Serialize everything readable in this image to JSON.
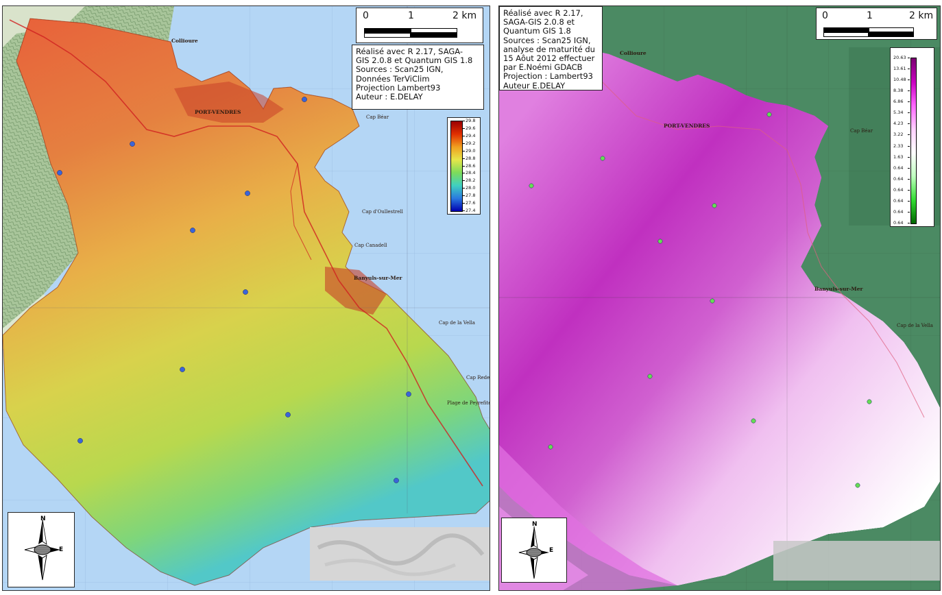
{
  "left_map": {
    "info_lines": [
      "Réalisé avec R 2.17, SAGA-",
      "GIS 2.0.8 et Quantum GIS 1.8",
      "Sources : Scan25 IGN,",
      "Données TerViClim",
      "Projection Lambert93",
      "Auteur : E.DELAY"
    ],
    "scale_labels": [
      "0",
      "1",
      "2 km"
    ],
    "legend_ticks": [
      "29.8",
      "29.6",
      "29.4",
      "29.2",
      "29.0",
      "28.8",
      "28.6",
      "28.4",
      "28.2",
      "28.0",
      "27.8",
      "27.6",
      "27.4"
    ],
    "legend_colors": [
      "#9b0000",
      "#e03000",
      "#f0a020",
      "#e6e64a",
      "#7ddc5a",
      "#40d0c0",
      "#2a7ae0",
      "#0000b0"
    ],
    "point_color": "#3b64d8",
    "compass": {
      "n": "N",
      "e": "E"
    },
    "places": {
      "collioure": "Collioure",
      "port_vendres": "PORT-VENDRES",
      "banyuls": "Banyuls-sur-Mer",
      "cap_bear": "Cap Béar",
      "cap_oullestrell": "Cap d'Oullestrell",
      "cap_canadell": "Cap Canadell",
      "cap_peyrefite": "Cap Rederis",
      "plage_peyrefite": "Plage de Peyrefite",
      "cap_vella": "Cap de la Vella"
    }
  },
  "right_map": {
    "info_lines": [
      "Réalisé avec R 2.17,",
      "SAGA-GIS 2.0.8 et",
      "Quantum GIS 1.8",
      "Sources : Scan25 IGN,",
      "analyse de maturité du",
      "15 Aôut 2012 effectuer",
      "par E.Noémi GDACB",
      "Projection : Lambert93",
      "Auteur E.DELAY"
    ],
    "scale_labels": [
      "0",
      "1",
      "2 km"
    ],
    "legend_ticks": [
      "20.63",
      "13.61",
      "10.48",
      "8.38",
      "6.86",
      "5.34",
      "4.23",
      "3.22",
      "2.33",
      "1.63",
      "0.64",
      "0.64",
      "0.64",
      "0.64",
      "0.64",
      "0.64"
    ],
    "legend_colors": [
      "#7a0070",
      "#c800c0",
      "#ff66ff",
      "#ffd0ff",
      "#ffffff",
      "#c0ffc0",
      "#33dd33",
      "#006600"
    ],
    "point_color": "#66dd55",
    "compass": {
      "n": "N",
      "e": "E"
    },
    "places": {
      "collioure": "Collioure",
      "port_vendres": "PORT-VENDRES",
      "banyuls": "Banyuls-sur-Mer",
      "cap_bear": "Cap Béar",
      "cap_vella": "Cap de la Vella"
    }
  }
}
